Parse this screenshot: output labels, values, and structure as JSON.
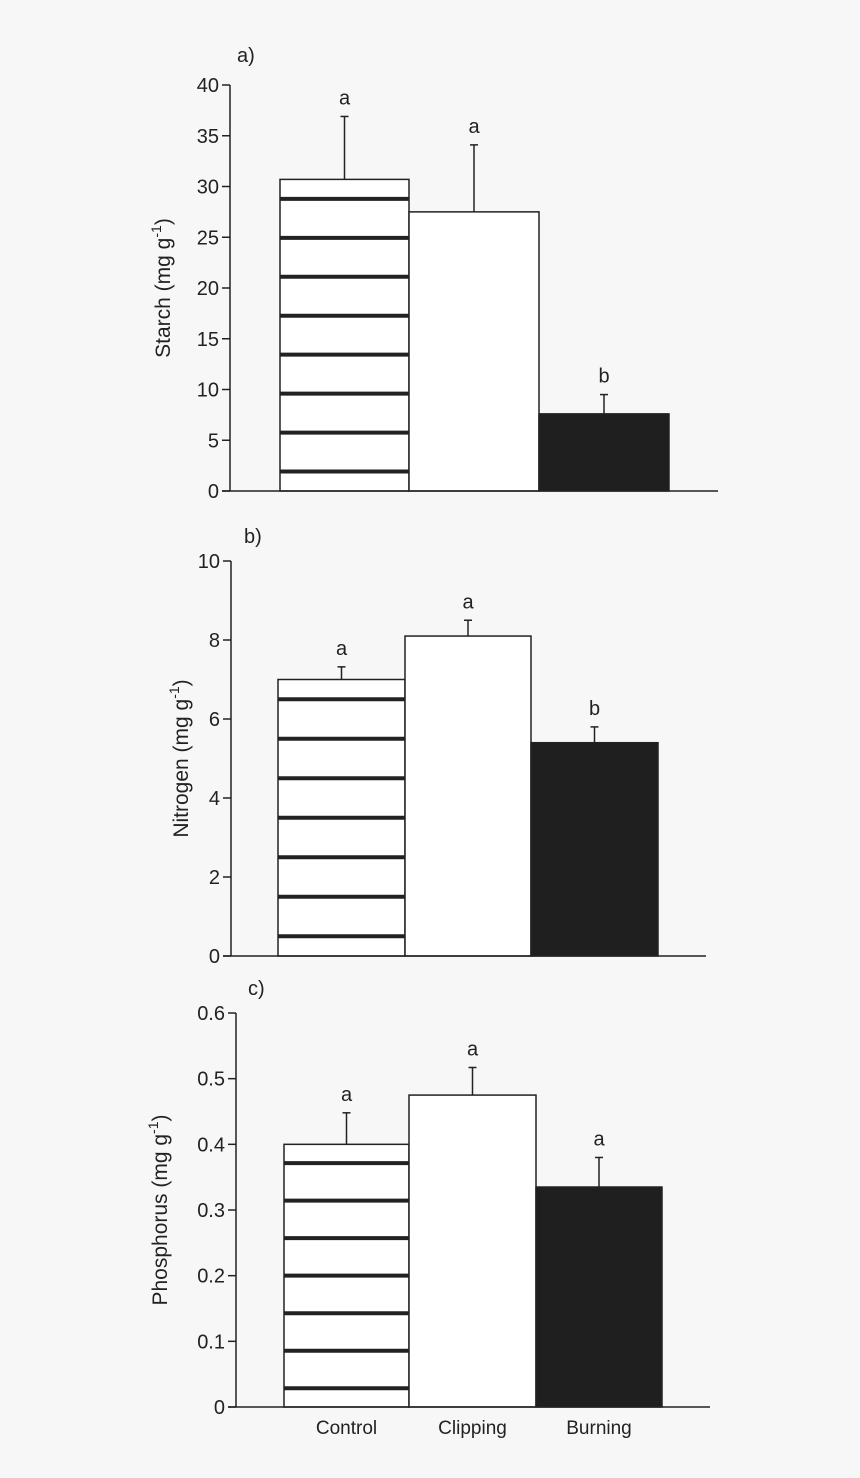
{
  "colors": {
    "background": "#f7f7f7",
    "axis": "#222222",
    "bar_edge": "#222222",
    "clipping_fill": "#ffffff",
    "burning_fill": "#1f1f1f",
    "control_stripe": "#222222"
  },
  "chart_data": [
    {
      "type": "bar",
      "panel_label": "a)",
      "ylabel_main": "Starch (mg g",
      "ylabel_sup": "-1",
      "ylabel_end": ")",
      "categories": [
        "Control",
        "Clipping",
        "Burning"
      ],
      "values": [
        30.7,
        27.5,
        7.6
      ],
      "errors": [
        6.2,
        6.6,
        1.9
      ],
      "significance": [
        "a",
        "a",
        "b"
      ],
      "fill_styles": [
        "striped",
        "white",
        "black"
      ],
      "ylim": [
        0,
        40
      ],
      "yticks": [
        0,
        5,
        10,
        15,
        20,
        25,
        30,
        35,
        40
      ],
      "ytick_labels": [
        "0",
        "5",
        "10",
        "15",
        "20",
        "25",
        "30",
        "35",
        "40"
      ],
      "show_category_labels": false
    },
    {
      "type": "bar",
      "panel_label": "b)",
      "ylabel_main": "Nitrogen (mg g",
      "ylabel_sup": "-1",
      "ylabel_end": ")",
      "categories": [
        "Control",
        "Clipping",
        "Burning"
      ],
      "values": [
        7.0,
        8.1,
        5.4
      ],
      "errors": [
        0.32,
        0.4,
        0.4
      ],
      "significance": [
        "a",
        "a",
        "b"
      ],
      "fill_styles": [
        "striped",
        "white",
        "black"
      ],
      "ylim": [
        0,
        10
      ],
      "yticks": [
        0,
        2,
        4,
        6,
        8,
        10
      ],
      "ytick_labels": [
        "0",
        "2",
        "4",
        "6",
        "8",
        "10"
      ],
      "show_category_labels": false
    },
    {
      "type": "bar",
      "panel_label": "c)",
      "ylabel_main": "Phosphorus (mg g",
      "ylabel_sup": "-1",
      "ylabel_end": ")",
      "categories": [
        "Control",
        "Clipping",
        "Burning"
      ],
      "values": [
        0.4,
        0.475,
        0.335
      ],
      "errors": [
        0.048,
        0.042,
        0.045
      ],
      "significance": [
        "a",
        "a",
        "a"
      ],
      "fill_styles": [
        "striped",
        "white",
        "black"
      ],
      "ylim": [
        0,
        0.6
      ],
      "yticks": [
        0,
        0.1,
        0.2,
        0.3,
        0.4,
        0.5,
        0.6
      ],
      "ytick_labels": [
        "0",
        "0.1",
        "0.2",
        "0.3",
        "0.4",
        "0.5",
        "0.6"
      ],
      "show_category_labels": true
    }
  ]
}
